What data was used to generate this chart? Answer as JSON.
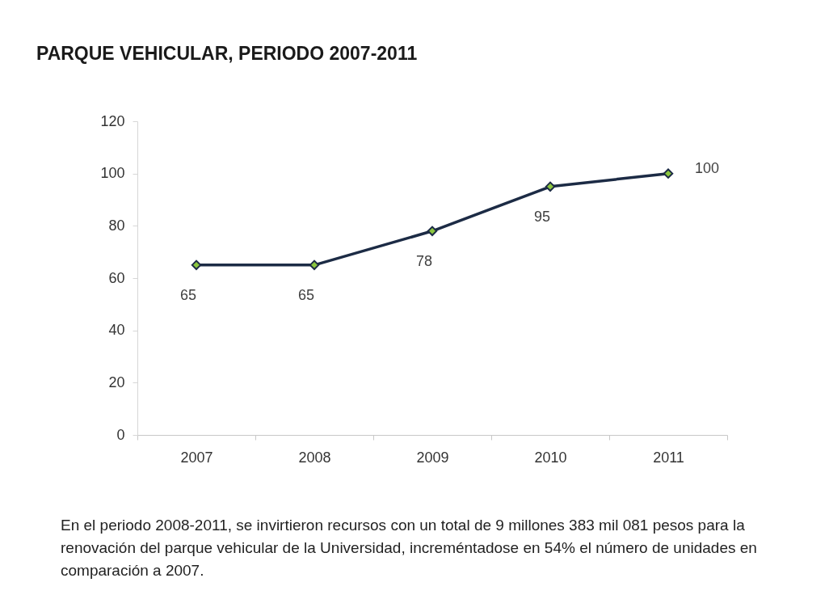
{
  "chart_data": {
    "type": "line",
    "title": "PARQUE VEHICULAR, PERIODO 2007-2011",
    "categories": [
      "2007",
      "2008",
      "2009",
      "2010",
      "2011"
    ],
    "series": [
      {
        "color": "#1c2b45",
        "values": [
          65,
          65,
          78,
          95,
          100
        ]
      }
    ],
    "ylim": [
      0,
      120
    ],
    "yticks": [
      0,
      20,
      40,
      60,
      80,
      100,
      120
    ],
    "data_labels": true,
    "marker": "diamond",
    "line_style": "solid",
    "annotations": [
      "En el periodo 2008-2011, se invirtieron recursos con un total de 9 millones 383 mil 081 pesos para la renovación del parque vehicular de la Universidad, increméntadose en 54% el número de unidades en comparación a 2007."
    ]
  }
}
